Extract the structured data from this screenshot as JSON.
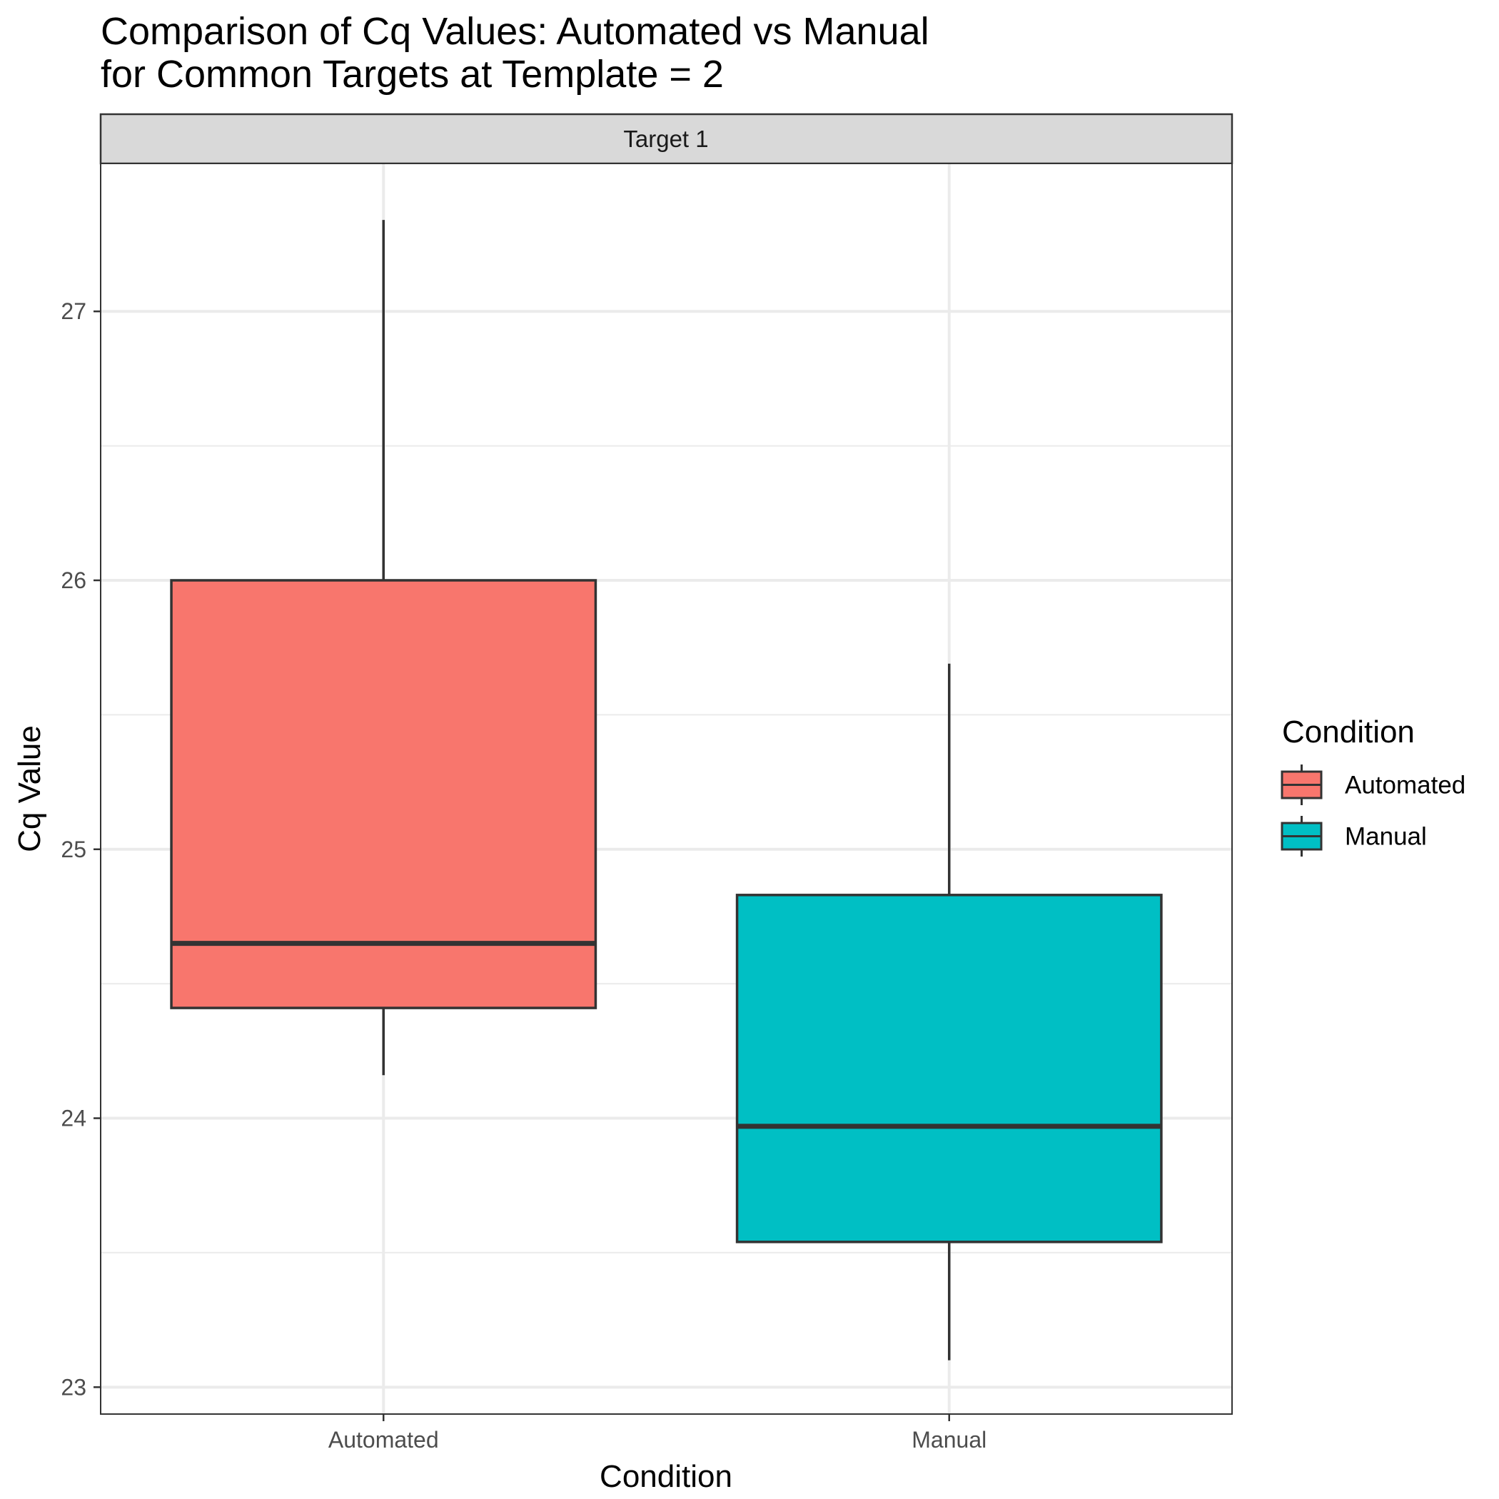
{
  "chart_data": {
    "type": "boxplot",
    "title_lines": [
      "Comparison of Cq Values: Automated vs Manual",
      "for Common Targets at Template = 2"
    ],
    "facet_label": "Target 1",
    "xlabel": "Condition",
    "ylabel": "Cq Value",
    "ylim": [
      22.9,
      27.55
    ],
    "y_ticks": [
      23,
      24,
      25,
      26,
      27
    ],
    "y_minor_ticks": [
      23.5,
      24.5,
      25.5,
      26.5
    ],
    "grid": true,
    "legend": {
      "title": "Condition",
      "position": "right",
      "entries": [
        "Automated",
        "Manual"
      ]
    },
    "categories": [
      "Automated",
      "Manual"
    ],
    "series": [
      {
        "name": "Automated",
        "color": "#F8766D",
        "min": 24.16,
        "q1": 24.41,
        "median": 24.65,
        "q3": 26.0,
        "max": 27.34
      },
      {
        "name": "Manual",
        "color": "#00BFC4",
        "min": 23.1,
        "q1": 23.54,
        "median": 23.97,
        "q3": 24.83,
        "max": 25.69
      }
    ]
  }
}
